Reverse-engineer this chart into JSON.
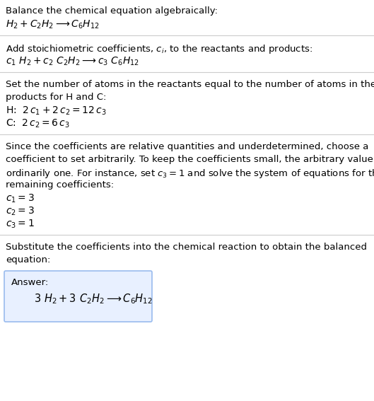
{
  "title_line1": "Balance the chemical equation algebraically:",
  "title_line2": "$H_2 + C_2H_2 \\longrightarrow C_6H_{12}$",
  "section2_header": "Add stoichiometric coefficients, $c_i$, to the reactants and products:",
  "section2_eq": "$c_1\\ H_2 + c_2\\ C_2H_2 \\longrightarrow c_3\\ C_6H_{12}$",
  "section3_header1": "Set the number of atoms in the reactants equal to the number of atoms in the",
  "section3_header2": "products for H and C:",
  "section3_H": "H: $\\;2\\,c_1 + 2\\,c_2 = 12\\,c_3$",
  "section3_C": "C: $\\;2\\,c_2 = 6\\,c_3$",
  "section4_line1": "Since the coefficients are relative quantities and underdetermined, choose a",
  "section4_line2": "coefficient to set arbitrarily. To keep the coefficients small, the arbitrary value is",
  "section4_line3": "ordinarily one. For instance, set $c_3 = 1$ and solve the system of equations for the",
  "section4_line4": "remaining coefficients:",
  "section4_c1": "$c_1 = 3$",
  "section4_c2": "$c_2 = 3$",
  "section4_c3": "$c_3 = 1$",
  "section5_header1": "Substitute the coefficients into the chemical reaction to obtain the balanced",
  "section5_header2": "equation:",
  "answer_label": "Answer:",
  "answer_eq": "$3\\ H_2 + 3\\ C_2H_2 \\longrightarrow C_6H_{12}$",
  "bg_color": "#ffffff",
  "text_color": "#000000",
  "line_color": "#cccccc",
  "box_edge_color": "#99bbee",
  "box_bg_color": "#e8f0ff",
  "font_size": 9.5
}
